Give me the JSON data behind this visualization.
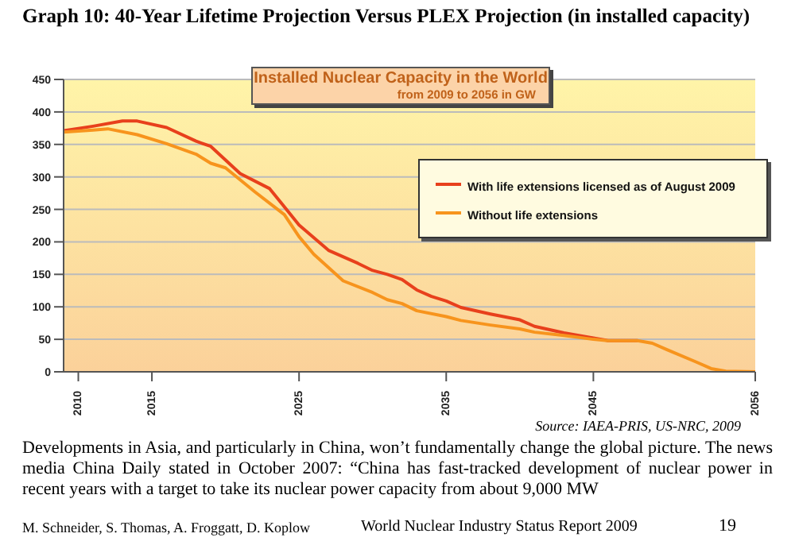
{
  "chart_data": {
    "type": "line",
    "title": "Installed Nuclear Capacity in the World",
    "subtitle": "from 2009 to 2056 in GW",
    "annotations": [
      "Graph 10: 40-Year Lifetime Projection Versus PLEX Projection (in installed capacity)",
      "Source: IAEA-PRIS, US-NRC, 2009",
      "Developments in Asia, and particularly in China, won’t fundamentally change the global picture. The news media China Daily stated in October 2007: “China has fast-tracked development of nuclear power in recent years with a target to take its nuclear power capacity from about 9,000 MW",
      "M. Schneider, S. Thomas, A. Froggatt, D. Koplow",
      "World Nuclear Industry Status Report 2009",
      "19"
    ],
    "series": [
      {
        "name": "With life extensions licensed as of August 2009",
        "color": "#e8401c",
        "x": [
          2009,
          2011,
          2013,
          2014,
          2016,
          2018,
          2019,
          2021,
          2023,
          2025,
          2027,
          2029,
          2030,
          2031,
          2032,
          2033,
          2034,
          2035,
          2036,
          2038,
          2040,
          2041,
          2043,
          2045,
          2046,
          2048
        ],
        "values": [
          371,
          378,
          386,
          386,
          376,
          355,
          347,
          305,
          282,
          226,
          187,
          167,
          156,
          150,
          142,
          126,
          116,
          109,
          99,
          89,
          80,
          70,
          60,
          52,
          48,
          48
        ]
      },
      {
        "name": "Without life extensions",
        "color": "#f7941d",
        "x": [
          2009,
          2011,
          2012,
          2014,
          2016,
          2018,
          2019,
          2020,
          2022,
          2024,
          2025,
          2026,
          2028,
          2030,
          2031,
          2032,
          2033,
          2035,
          2036,
          2038,
          2040,
          2041,
          2043,
          2045,
          2046,
          2048,
          2049,
          2050,
          2052,
          2053,
          2054,
          2056
        ],
        "values": [
          369,
          372,
          374,
          365,
          351,
          335,
          321,
          314,
          277,
          242,
          208,
          181,
          140,
          122,
          111,
          105,
          94,
          85,
          79,
          72,
          66,
          61,
          56,
          50,
          48,
          48,
          44,
          34,
          15,
          5,
          1,
          0
        ]
      }
    ],
    "xlim": [
      2009,
      2056
    ],
    "xticks": [
      2010,
      2015,
      2025,
      2035,
      2045,
      2056
    ],
    "ylim": [
      0,
      450
    ],
    "yticks": [
      0,
      50,
      100,
      150,
      200,
      250,
      300,
      350,
      400,
      450
    ],
    "grid": "y",
    "legend": "top right",
    "marker": "none",
    "line_style": "solid"
  }
}
